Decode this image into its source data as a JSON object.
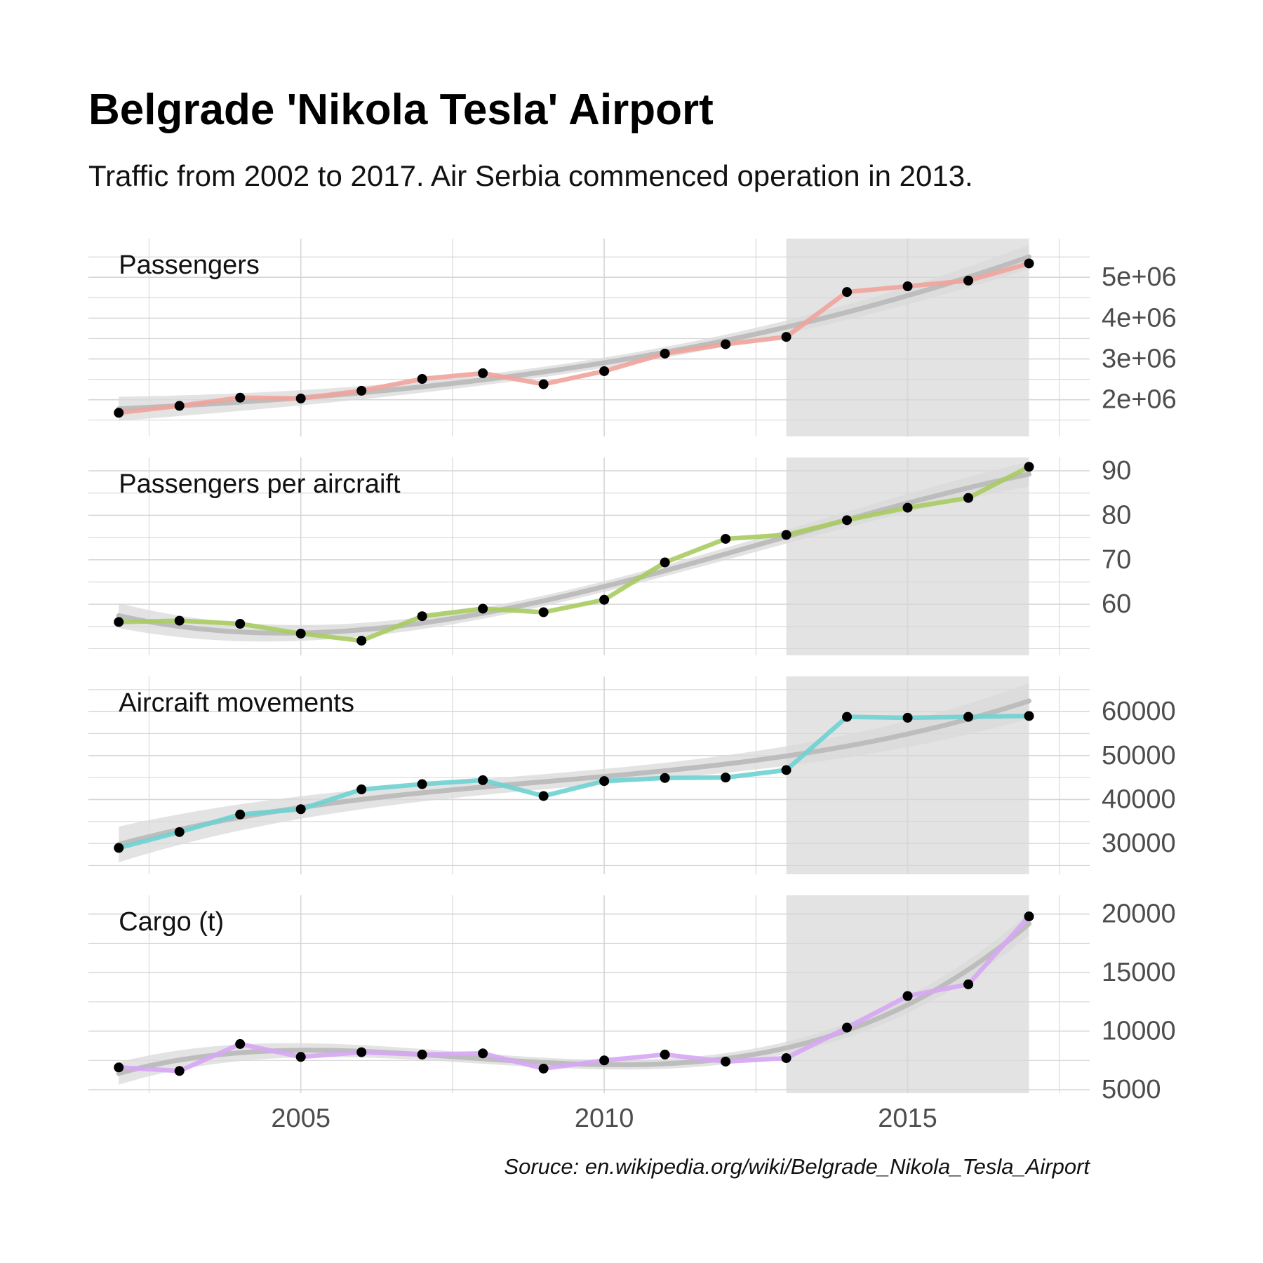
{
  "title": "Belgrade 'Nikola Tesla' Airport",
  "subtitle": "Traffic from 2002 to 2017. Air Serbia commenced operation in 2013.",
  "caption": "Soruce: en.wikipedia.org/wiki/Belgrade_Nikola_Tesla_Airport",
  "highlight_period": [
    2013,
    2017
  ],
  "colors": {
    "highlight_band": "#e3e3e3",
    "grid": "#d6d6d6",
    "trend_line": "#bdbdbd",
    "trend_band": "#d9d9d9",
    "points": "#000000"
  },
  "chart_data": {
    "type": "line",
    "facets": "stacked panels sharing the x axis, y axis on the right",
    "x": [
      2002,
      2003,
      2004,
      2005,
      2006,
      2007,
      2008,
      2009,
      2010,
      2011,
      2012,
      2013,
      2014,
      2015,
      2016,
      2017
    ],
    "xlim": [
      2001.5,
      2018
    ],
    "xticks": [
      2005,
      2010,
      2015
    ],
    "xtick_labels": [
      "2005",
      "2010",
      "2015"
    ],
    "grid": true,
    "legend": "none",
    "smoothed_trend": true,
    "panels": [
      {
        "label": "Passengers",
        "color": "#f0a39c",
        "values": [
          1680000,
          1850000,
          2050000,
          2030000,
          2220000,
          2510000,
          2650000,
          2380000,
          2700000,
          3130000,
          3360000,
          3540000,
          4640000,
          4780000,
          4920000,
          5340000
        ],
        "ylim": [
          1100000,
          5950000
        ],
        "yticks": [
          2000000,
          3000000,
          4000000,
          5000000
        ],
        "ytick_labels": [
          "2e+06",
          "3e+06",
          "4e+06",
          "5e+06"
        ],
        "minor_step": 500000
      },
      {
        "label": "Passengers per aircraift",
        "color": "#a9cc62",
        "values": [
          56.0,
          56.3,
          55.6,
          53.4,
          51.8,
          57.3,
          59.0,
          58.2,
          61.0,
          69.4,
          74.7,
          75.6,
          78.9,
          81.7,
          83.9,
          90.9
        ],
        "ylim": [
          48.5,
          93
        ],
        "yticks": [
          60,
          70,
          80,
          90
        ],
        "ytick_labels": [
          "60",
          "70",
          "80",
          "90"
        ],
        "minor_step": 5
      },
      {
        "label": "Aircraift movements",
        "color": "#6fd1d2",
        "values": [
          29000,
          32600,
          36600,
          37800,
          42300,
          43500,
          44400,
          40800,
          44200,
          44900,
          45000,
          46700,
          58800,
          58600,
          58800,
          59000
        ],
        "ylim": [
          23000,
          68000
        ],
        "yticks": [
          30000,
          40000,
          50000,
          60000
        ],
        "ytick_labels": [
          "30000",
          "40000",
          "50000",
          "60000"
        ],
        "minor_step": 5000
      },
      {
        "label": "Cargo (t)",
        "color": "#d6a6f4",
        "values": [
          6900,
          6600,
          8900,
          7800,
          8200,
          8000,
          8100,
          6800,
          7500,
          8000,
          7400,
          7700,
          10300,
          13000,
          14000,
          19800
        ],
        "ylim": [
          4700,
          21600
        ],
        "yticks": [
          5000,
          10000,
          15000,
          20000
        ],
        "ytick_labels": [
          "5000",
          "10000",
          "15000",
          "20000"
        ],
        "minor_step": 2500
      }
    ]
  }
}
